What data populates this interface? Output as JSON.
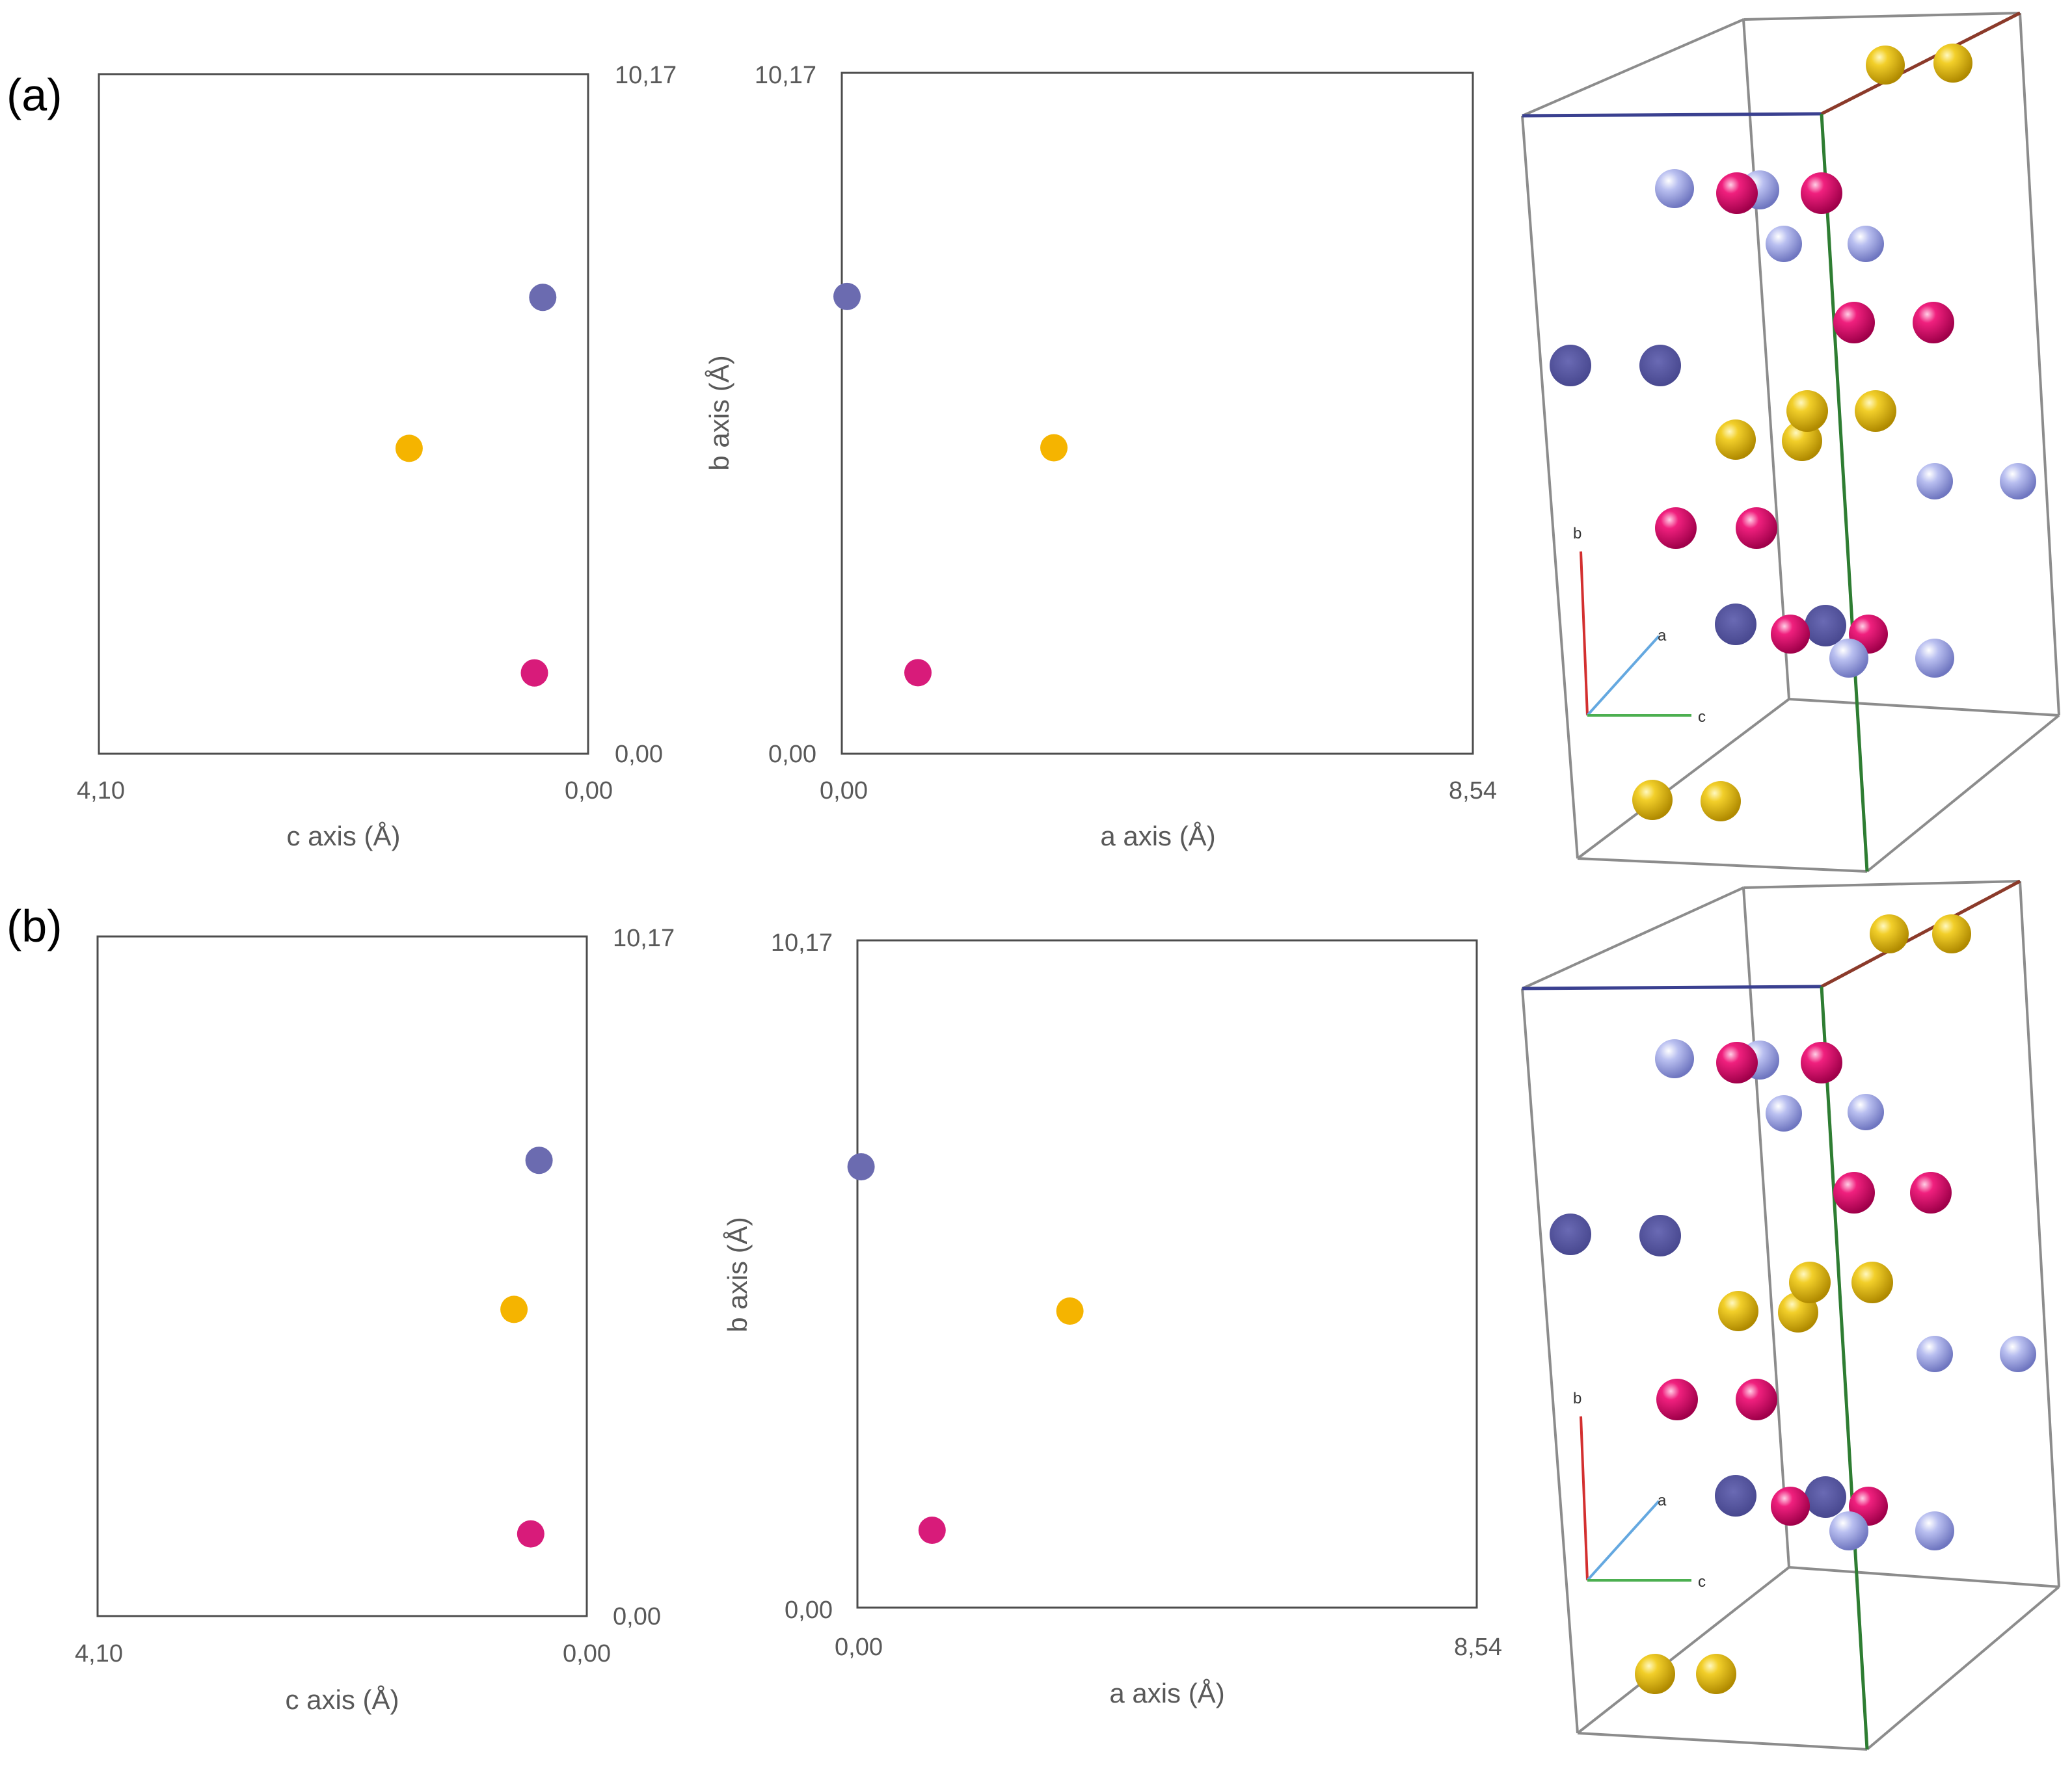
{
  "colors": {
    "atom_dark_blue": "#6b6bb0",
    "atom_yellow": "#f5b400",
    "atom_magenta": "#d81b7a",
    "sphere_blue": "#a8aee6",
    "sphere_dark_blue": "#5a5aa0",
    "sphere_magenta": "#e0146e",
    "sphere_yellow": "#f0c820",
    "edge_gray": "#8c8c8c",
    "edge_blue": "#3a4090",
    "edge_brown": "#8b3a2a",
    "edge_green": "#2e7d32",
    "axis_b": "#d32f2f",
    "axis_a": "#64a8e0",
    "axis_c": "#4caf50"
  },
  "panels": [
    {
      "label": "(a)"
    },
    {
      "label": "(b)"
    }
  ],
  "structure_axes": {
    "a": "a",
    "b": "b",
    "c": "c"
  },
  "chart_data": [
    {
      "panel": "(a)",
      "type": "scatter",
      "title": "",
      "xlabel": "c axis (Å)",
      "ylabel": "",
      "xlim": [
        4.1,
        0.0
      ],
      "ylim": [
        0.0,
        10.17
      ],
      "x_reversed": true,
      "x_tick_labels": [
        "4,10",
        "0,00"
      ],
      "y_tick_labels": [
        "0,00",
        "10,17"
      ],
      "y_ticks_side": "right",
      "grid": false,
      "series": [
        {
          "name": "dark blue atom",
          "color": "#6b6bb0",
          "x": [
            0.38
          ],
          "y": [
            6.83
          ]
        },
        {
          "name": "yellow atom",
          "color": "#f5b400",
          "x": [
            1.5
          ],
          "y": [
            4.57
          ]
        },
        {
          "name": "magenta atom",
          "color": "#d81b7a",
          "x": [
            0.45
          ],
          "y": [
            1.21
          ]
        }
      ]
    },
    {
      "panel": "(a)",
      "type": "scatter",
      "title": "",
      "xlabel": "a axis (Å)",
      "ylabel": "b axis (Å)",
      "xlim": [
        0.0,
        8.54
      ],
      "ylim": [
        0.0,
        10.17
      ],
      "x_tick_labels": [
        "0,00",
        "8,54"
      ],
      "y_tick_labels": [
        "0,00",
        "10,17"
      ],
      "y_ticks_side": "left",
      "grid": false,
      "series": [
        {
          "name": "dark blue atom",
          "color": "#6b6bb0",
          "x": [
            0.07
          ],
          "y": [
            6.83
          ]
        },
        {
          "name": "yellow atom",
          "color": "#f5b400",
          "x": [
            2.87
          ],
          "y": [
            4.57
          ]
        },
        {
          "name": "magenta atom",
          "color": "#d81b7a",
          "x": [
            1.03
          ],
          "y": [
            1.21
          ]
        }
      ]
    },
    {
      "panel": "(b)",
      "type": "scatter",
      "title": "",
      "xlabel": "c axis (Å)",
      "ylabel": "",
      "xlim": [
        4.1,
        0.0
      ],
      "ylim": [
        0.0,
        10.17
      ],
      "x_reversed": true,
      "x_tick_labels": [
        "4,10",
        "0,00"
      ],
      "y_tick_labels": [
        "0,00",
        "10,17"
      ],
      "y_ticks_side": "right",
      "grid": false,
      "series": [
        {
          "name": "dark blue atom",
          "color": "#6b6bb0",
          "x": [
            0.4
          ],
          "y": [
            6.82
          ]
        },
        {
          "name": "yellow atom",
          "color": "#f5b400",
          "x": [
            0.61
          ],
          "y": [
            4.59
          ]
        },
        {
          "name": "magenta atom",
          "color": "#d81b7a",
          "x": [
            0.47
          ],
          "y": [
            1.23
          ]
        }
      ]
    },
    {
      "panel": "(b)",
      "type": "scatter",
      "title": "",
      "xlabel": "a axis (Å)",
      "ylabel": "b axis (Å)",
      "xlim": [
        0.0,
        8.54
      ],
      "ylim": [
        0.0,
        10.17
      ],
      "x_tick_labels": [
        "0,00",
        "8,54"
      ],
      "y_tick_labels": [
        "0,00",
        "10,17"
      ],
      "y_ticks_side": "left",
      "grid": false,
      "series": [
        {
          "name": "dark blue atom",
          "color": "#6b6bb0",
          "x": [
            0.05
          ],
          "y": [
            6.72
          ]
        },
        {
          "name": "yellow atom",
          "color": "#f5b400",
          "x": [
            2.93
          ],
          "y": [
            4.52
          ]
        },
        {
          "name": "magenta atom",
          "color": "#d81b7a",
          "x": [
            1.03
          ],
          "y": [
            1.18
          ]
        }
      ]
    }
  ]
}
